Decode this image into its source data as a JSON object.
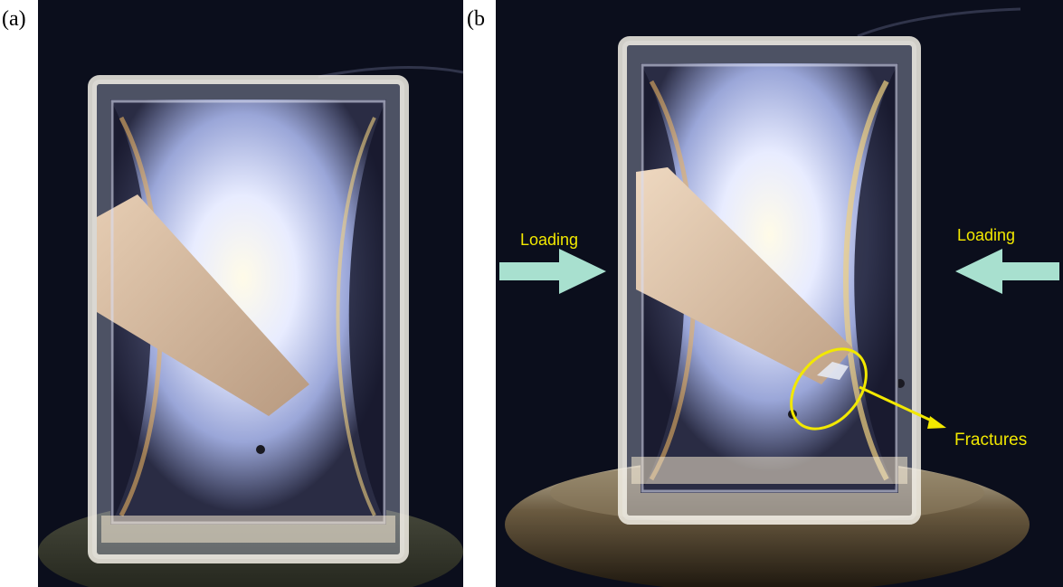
{
  "panels": [
    {
      "label": "(a)"
    },
    {
      "label": "(b"
    }
  ],
  "annotations": {
    "loading_left": "Loading",
    "loading_right": "Loading",
    "fractures": "Fractures"
  },
  "colors": {
    "background": "#0b0e1c",
    "annotation": "#f2e800",
    "arrow": "#a8e0cf"
  }
}
